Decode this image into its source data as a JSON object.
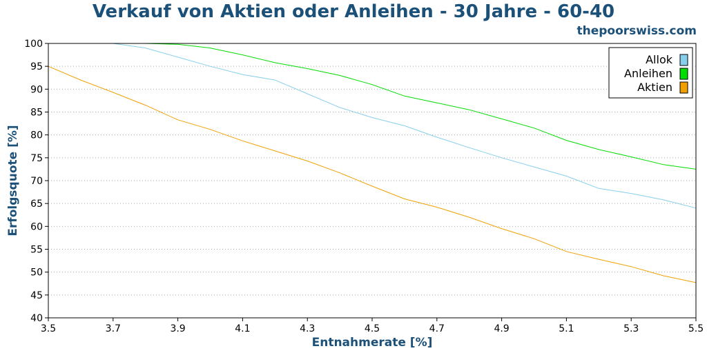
{
  "title": "Verkauf von Aktien oder Anleihen - 30 Jahre - 60-40",
  "brand": "thepoorswiss.com",
  "chart_data": {
    "type": "line",
    "xlabel": "Entnahmerate [%]",
    "ylabel": "Erfolgsquote [%]",
    "xlim": [
      3.5,
      5.5
    ],
    "ylim": [
      40,
      100
    ],
    "x_ticks": [
      "3.5",
      "3.7",
      "3.9",
      "4.1",
      "4.3",
      "4.5",
      "4.7",
      "4.9",
      "5.1",
      "5.3",
      "5.5"
    ],
    "y_ticks": [
      "100",
      "95",
      "90",
      "85",
      "80",
      "75",
      "70",
      "65",
      "60",
      "55",
      "50",
      "45",
      "40"
    ],
    "grid": "horizontal dotted",
    "legend_position": "top-right",
    "x": [
      3.5,
      3.6,
      3.7,
      3.8,
      3.9,
      4.0,
      4.1,
      4.2,
      4.3,
      4.4,
      4.5,
      4.6,
      4.7,
      4.8,
      4.9,
      5.0,
      5.1,
      5.2,
      5.3,
      5.4,
      5.5
    ],
    "series": [
      {
        "name": "Allok",
        "color": "#87ceeb",
        "values": [
          100,
          100,
          100,
          99,
          97,
          95,
          93.2,
          92,
          89,
          86,
          83.8,
          82,
          79.5,
          77.2,
          75,
          73,
          71,
          68.3,
          67.2,
          65.8,
          64
        ]
      },
      {
        "name": "Anleihen",
        "color": "#00dd00",
        "values": [
          100,
          100,
          100,
          100,
          99.8,
          99,
          97.5,
          95.8,
          94.5,
          93,
          91,
          88.5,
          87,
          85.5,
          83.5,
          81.5,
          78.8,
          76.8,
          75.2,
          73.5,
          72.5
        ]
      },
      {
        "name": "Aktien",
        "color": "#f0a000",
        "values": [
          95,
          92,
          89.3,
          86.5,
          83.3,
          81.2,
          78.7,
          76.5,
          74.3,
          71.7,
          68.8,
          66,
          64.2,
          62,
          59.5,
          57.3,
          54.5,
          52.8,
          51.2,
          49.2,
          47.7
        ]
      }
    ]
  }
}
